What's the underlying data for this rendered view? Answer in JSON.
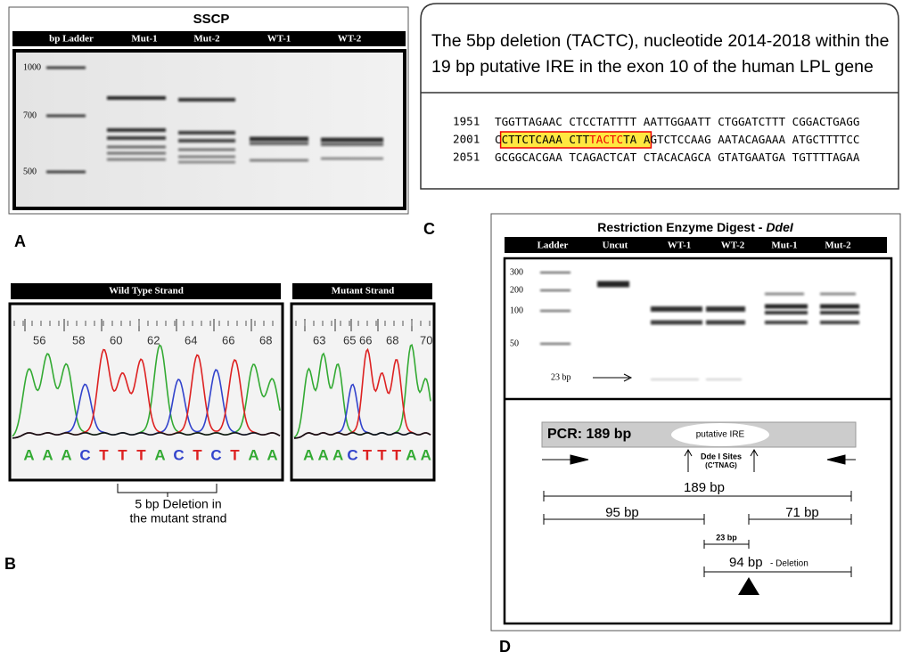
{
  "panel_a": {
    "label": "A",
    "title": "SSCP",
    "lanes": [
      "bp Ladder",
      "Mut-1",
      "Mut-2",
      "WT-1",
      "WT-2"
    ],
    "markers": [
      "1000",
      "700",
      "500"
    ]
  },
  "panel_b": {
    "label": "B",
    "wild_type": {
      "title": "Wild Type Strand",
      "positions": [
        "56",
        "58",
        "60",
        "62",
        "64",
        "66",
        "68"
      ],
      "bases": [
        "A",
        "A",
        "A",
        "C",
        "T",
        "T",
        "T",
        "A",
        "C",
        "T",
        "C",
        "T",
        "A",
        "A"
      ]
    },
    "mutant": {
      "title": "Mutant Strand",
      "positions": [
        "63",
        "65",
        "66",
        "68",
        "70"
      ],
      "bases": [
        "A",
        "A",
        "A",
        "C",
        "T",
        "T",
        "T",
        "A",
        "A"
      ]
    },
    "deletion_note": [
      "5 bp Deletion in",
      "the mutant strand"
    ]
  },
  "panel_c": {
    "label": "C",
    "title_lines": [
      "The 5bp deletion (TACTC), nucleotide 2014-2018 within the",
      "19 bp putative IRE in the exon 10 of the human LPL gene"
    ],
    "sequence": [
      {
        "position": "1951",
        "segments": [
          "TGGTTAGAAC CTCCTATTTT AATTGGAATT CTGGATCTTT CGGACTGAGG"
        ]
      },
      {
        "position": "2001",
        "segments": [
          "C",
          "CTTCTCAAA CTT",
          "TACTC",
          "TA A",
          "GTCTCCAAG AATACAGAAA ATGCTTTTCC"
        ]
      },
      {
        "position": "2051",
        "segments": [
          "GCGGCACGAA TCAGACTCAT CTACACAGCA GTATGAATGA TGTTTTAGAA"
        ]
      }
    ]
  },
  "panel_d": {
    "label": "D",
    "title": "Restriction Enzyme Digest -",
    "title_enzyme": "DdeI",
    "lanes": [
      "Ladder",
      "Uncut",
      "WT-1",
      "WT-2",
      "Mut-1",
      "Mut-2"
    ],
    "markers": [
      "300",
      "200",
      "100",
      "50"
    ],
    "small_fragment": "23 bp",
    "map": {
      "pcr": "PCR: 189 bp",
      "ire": "putative IRE",
      "sites": "Dde I Sites",
      "site_motif": "(C'TNAG)",
      "full": "189 bp",
      "left": "95 bp",
      "right": "71 bp",
      "middle": "23 bp",
      "deletion": "94 bp",
      "deletion_note": "- Deletion"
    }
  }
}
